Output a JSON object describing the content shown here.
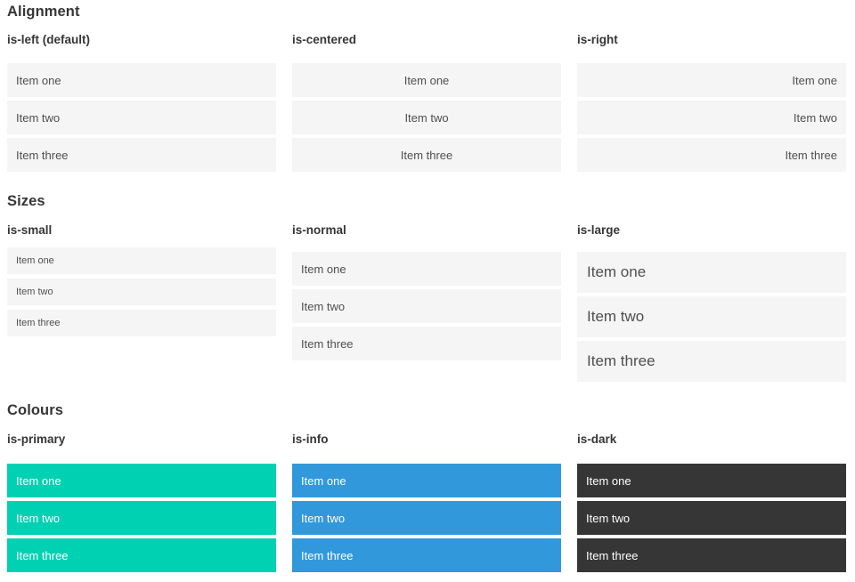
{
  "colors": {
    "item_background": "#f5f5f5",
    "item_text": "#4f4f4f",
    "heading_text": "#363636",
    "primary": "#00d1b2",
    "info": "#3298dc",
    "dark": "#363636",
    "colored_item_text": "#ffffff",
    "page_background": "#ffffff"
  },
  "sections": [
    {
      "title": "Alignment",
      "columns": [
        {
          "subtitle": "is-left (default)",
          "items": [
            "Item one",
            "Item two",
            "Item three"
          ]
        },
        {
          "subtitle": "is-centered",
          "items": [
            "Item one",
            "Item two",
            "Item three"
          ]
        },
        {
          "subtitle": "is-right",
          "items": [
            "Item one",
            "Item two",
            "Item three"
          ]
        }
      ]
    },
    {
      "title": "Sizes",
      "columns": [
        {
          "subtitle": "is-small",
          "items": [
            "Item one",
            "Item two",
            "Item three"
          ]
        },
        {
          "subtitle": "is-normal",
          "items": [
            "Item one",
            "Item two",
            "Item three"
          ]
        },
        {
          "subtitle": "is-large",
          "items": [
            "Item one",
            "Item two",
            "Item three"
          ]
        }
      ]
    },
    {
      "title": "Colours",
      "columns": [
        {
          "subtitle": "is-primary",
          "items": [
            "Item one",
            "Item two",
            "Item three"
          ]
        },
        {
          "subtitle": "is-info",
          "items": [
            "Item one",
            "Item two",
            "Item three"
          ]
        },
        {
          "subtitle": "is-dark",
          "items": [
            "Item one",
            "Item two",
            "Item three"
          ]
        }
      ]
    }
  ]
}
